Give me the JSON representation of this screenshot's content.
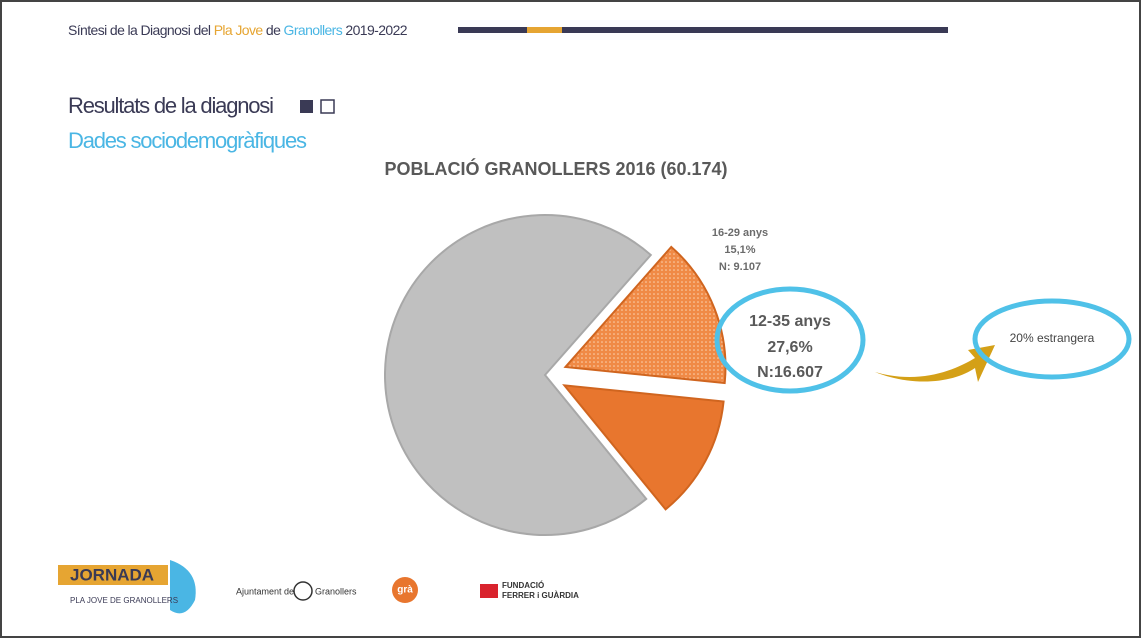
{
  "header": {
    "parts": [
      "Síntesi de la Diagnosi del ",
      "Pla Jove",
      " de ",
      "Granollers",
      " 2019-2022"
    ],
    "section": "Resultats de la diagnosi",
    "subsection": "Dades sociodemogràfiques"
  },
  "chart_data": {
    "type": "pie",
    "title": "POBLACIÓ GRANOLLERS 2016 (60.174)",
    "categories": [
      null,
      "16-29 anys",
      null
    ],
    "values": [
      72.4,
      15.1,
      12.5
    ],
    "value_labels": [
      null,
      "15,1%",
      null
    ],
    "colors": [
      "#c0c0c0",
      "#f08a46",
      "#e8762e"
    ],
    "annotations": [
      "N: 9.107",
      "12-35 anys",
      "27,6%",
      "N:16.607",
      "20% estrangera"
    ]
  },
  "footer": {
    "logos": [
      "JORNADA",
      "PLA JOVE DE GRANOLLERS",
      "Ajuntament de",
      "Granollers",
      "grà",
      "FUNDACIÓ",
      "FERRER i GUÀRDIA"
    ]
  }
}
